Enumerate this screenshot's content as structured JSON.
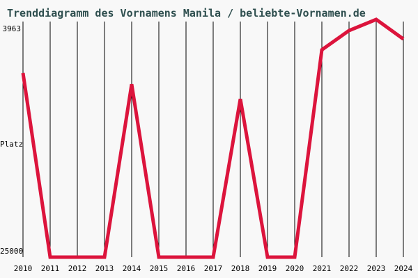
{
  "chart_title": "Trenddiagramm des Vornamens Manila / beliebte-Vornamen.de",
  "colors": {
    "background": "#f8f8f8",
    "title": "#2f4f4f",
    "line": "#dc143c",
    "grid": "#000000",
    "tick_text": "#000000"
  },
  "y_axis": {
    "top_tick": "3963",
    "axis_title": "Platz",
    "bottom_tick": "25000"
  },
  "chart_data": {
    "type": "line",
    "title": "Trenddiagramm des Vornamens Manila / beliebte-Vornamen.de",
    "xlabel": "",
    "ylabel": "Platz",
    "categories": [
      "2010",
      "2011",
      "2012",
      "2013",
      "2014",
      "2015",
      "2016",
      "2017",
      "2018",
      "2019",
      "2020",
      "2021",
      "2022",
      "2023",
      "2024"
    ],
    "series": [
      {
        "name": "Manila",
        "values": [
          8700,
          25000,
          25000,
          25000,
          9700,
          25000,
          25000,
          25000,
          11000,
          25000,
          25000,
          6650,
          4950,
          3963,
          5700
        ]
      }
    ],
    "ylim": [
      3963,
      25000
    ],
    "y_axis_inverted_rank_scale": true,
    "floor_value": 25000,
    "best_rank_label": "3963",
    "grid": "vertical-per-year",
    "legend": "none"
  }
}
